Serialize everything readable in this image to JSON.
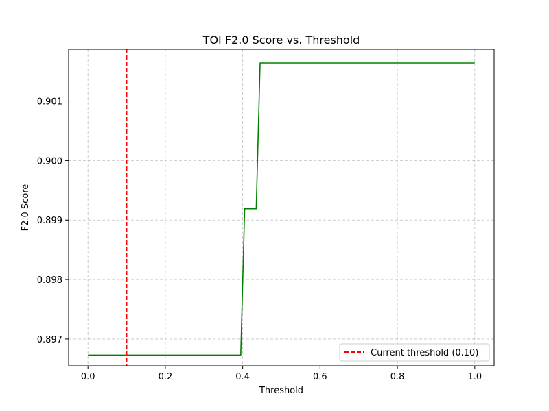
{
  "chart_data": {
    "type": "line",
    "title": "TOI F2.0 Score vs. Threshold",
    "xlabel": "Threshold",
    "ylabel": "F2.0 Score",
    "xlim": [
      -0.05,
      1.05
    ],
    "ylim": [
      0.89655,
      0.90187
    ],
    "x_ticks": [
      0.0,
      0.2,
      0.4,
      0.6,
      0.8,
      1.0
    ],
    "x_tick_labels": [
      "0.0",
      "0.2",
      "0.4",
      "0.6",
      "0.8",
      "1.0"
    ],
    "y_ticks": [
      0.897,
      0.898,
      0.899,
      0.9,
      0.901
    ],
    "y_tick_labels": [
      "0.897",
      "0.898",
      "0.899",
      "0.900",
      "0.901"
    ],
    "grid": true,
    "legend_position": "lower-right",
    "series": [
      {
        "color": "#008000",
        "style": "solid",
        "x": [
          0.0,
          0.395,
          0.405,
          0.435,
          0.445,
          1.0
        ],
        "y": [
          0.89673,
          0.89673,
          0.89919,
          0.89919,
          0.90164,
          0.90164
        ]
      }
    ],
    "reference_lines": [
      {
        "orientation": "vertical",
        "x": 0.1,
        "name": "Current threshold (0.10)",
        "color": "#ff0000",
        "style": "dashed"
      }
    ]
  }
}
